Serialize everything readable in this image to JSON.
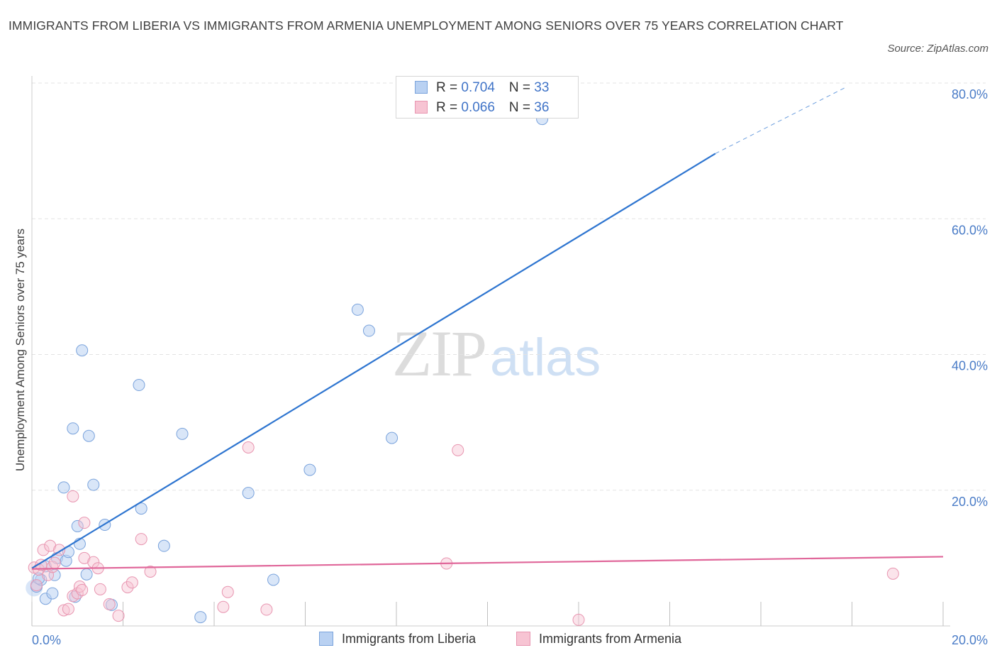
{
  "title": "IMMIGRANTS FROM LIBERIA VS IMMIGRANTS FROM ARMENIA UNEMPLOYMENT AMONG SENIORS OVER 75 YEARS CORRELATION CHART",
  "source": "Source: ZipAtlas.com",
  "watermark": {
    "zip": "ZIP",
    "atlas": "atlas"
  },
  "legend_top": [
    {
      "r_label": "R = ",
      "r_value": "0.704",
      "n_label": "N = ",
      "n_value": "33"
    },
    {
      "r_label": "R = ",
      "r_value": "0.066",
      "n_label": "N = ",
      "n_value": "36"
    }
  ],
  "colors": {
    "liberia_fill": "#b9d1f2",
    "liberia_stroke": "#7aa3dc",
    "liberia_line": "#2e75d0",
    "armenia_fill": "#f7c4d3",
    "armenia_stroke": "#e895b0",
    "armenia_line": "#e0679a",
    "grid": "#e3e3e3",
    "tick": "#4a7cc7"
  },
  "chart_data": {
    "type": "scatter",
    "title": "IMMIGRANTS FROM LIBERIA VS IMMIGRANTS FROM ARMENIA UNEMPLOYMENT AMONG SENIORS OVER 75 YEARS CORRELATION CHART",
    "xlabel": "",
    "ylabel": "Unemployment Among Seniors over 75 years",
    "xlim": [
      0,
      20
    ],
    "ylim": [
      0,
      80
    ],
    "x_tick_labels": [
      "0.0%",
      "20.0%"
    ],
    "y_ticks": [
      {
        "value": 20,
        "label": "20.0%"
      },
      {
        "value": 40,
        "label": "40.0%"
      },
      {
        "value": 60,
        "label": "60.0%"
      },
      {
        "value": 80,
        "label": "80.0%"
      }
    ],
    "series": [
      {
        "name": "Immigrants from Liberia",
        "r": 0.704,
        "n": 33,
        "trend": {
          "x0": 0,
          "y0": 8.5,
          "x1": 15,
          "y1": 69.6,
          "dash_to_x": 17.9,
          "dash_to_y": 79.5
        },
        "points": [
          [
            0.1,
            5.8
          ],
          [
            0.2,
            6.8
          ],
          [
            0.3,
            4.0
          ],
          [
            0.3,
            8.8
          ],
          [
            0.45,
            4.8
          ],
          [
            0.5,
            7.5
          ],
          [
            0.55,
            10.0
          ],
          [
            0.7,
            20.4
          ],
          [
            0.75,
            9.6
          ],
          [
            0.8,
            10.9
          ],
          [
            0.9,
            29.1
          ],
          [
            0.95,
            4.3
          ],
          [
            1.0,
            14.7
          ],
          [
            1.05,
            12.1
          ],
          [
            1.1,
            40.6
          ],
          [
            1.2,
            7.6
          ],
          [
            1.25,
            28.0
          ],
          [
            1.35,
            20.8
          ],
          [
            1.6,
            14.9
          ],
          [
            1.75,
            3.1
          ],
          [
            2.35,
            35.5
          ],
          [
            2.4,
            17.3
          ],
          [
            2.9,
            11.8
          ],
          [
            3.3,
            28.3
          ],
          [
            3.7,
            1.3
          ],
          [
            4.75,
            19.6
          ],
          [
            5.3,
            6.8
          ],
          [
            6.1,
            23.0
          ],
          [
            7.15,
            46.6
          ],
          [
            7.4,
            43.5
          ],
          [
            7.9,
            27.7
          ],
          [
            11.2,
            74.7
          ],
          [
            0.15,
            7.0
          ]
        ]
      },
      {
        "name": "Immigrants from Armenia",
        "r": 0.066,
        "n": 36,
        "trend": {
          "x0": 0,
          "y0": 8.4,
          "x1": 20,
          "y1": 10.2
        },
        "points": [
          [
            0.05,
            8.6
          ],
          [
            0.1,
            6.0
          ],
          [
            0.15,
            8.3
          ],
          [
            0.2,
            9.0
          ],
          [
            0.25,
            11.2
          ],
          [
            0.35,
            7.5
          ],
          [
            0.4,
            11.8
          ],
          [
            0.45,
            8.7
          ],
          [
            0.5,
            9.3
          ],
          [
            0.6,
            11.2
          ],
          [
            0.7,
            2.3
          ],
          [
            0.8,
            2.5
          ],
          [
            0.9,
            4.4
          ],
          [
            0.9,
            19.1
          ],
          [
            1.0,
            4.8
          ],
          [
            1.05,
            5.8
          ],
          [
            1.1,
            5.3
          ],
          [
            1.15,
            15.2
          ],
          [
            1.15,
            10.0
          ],
          [
            1.35,
            9.4
          ],
          [
            1.45,
            8.5
          ],
          [
            1.5,
            5.4
          ],
          [
            1.7,
            3.2
          ],
          [
            1.9,
            1.5
          ],
          [
            2.1,
            5.7
          ],
          [
            2.2,
            6.4
          ],
          [
            2.4,
            12.8
          ],
          [
            2.6,
            8.0
          ],
          [
            4.2,
            2.8
          ],
          [
            4.3,
            5.0
          ],
          [
            4.75,
            26.3
          ],
          [
            5.15,
            2.4
          ],
          [
            9.1,
            9.2
          ],
          [
            9.35,
            25.9
          ],
          [
            12.0,
            0.9
          ],
          [
            18.9,
            7.7
          ]
        ]
      }
    ],
    "legend": [
      "Immigrants from Liberia",
      "Immigrants from Armenia"
    ],
    "legend_position": "bottom-center",
    "grid": true
  }
}
